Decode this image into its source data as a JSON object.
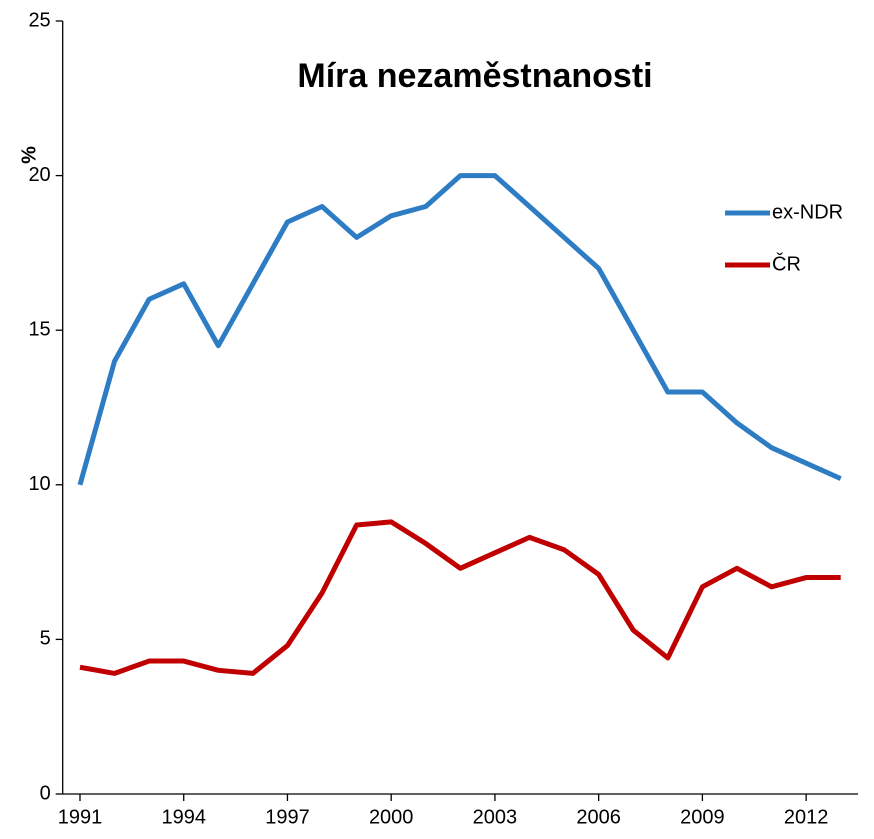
{
  "chart_data": {
    "type": "line",
    "title": "Míra nezaměstnanosti",
    "y_label": "%",
    "x": [
      1991,
      1992,
      1993,
      1994,
      1995,
      1996,
      1997,
      1998,
      1999,
      2000,
      2001,
      2002,
      2003,
      2004,
      2005,
      2006,
      2007,
      2008,
      2009,
      2010,
      2011,
      2012,
      2013
    ],
    "series": [
      {
        "name": "ex-NDR",
        "color": "#2e7dc4",
        "values": [
          10,
          14,
          16,
          16.5,
          14.5,
          16.5,
          18.5,
          19,
          18,
          18.7,
          19,
          20,
          20,
          19,
          18,
          17,
          15,
          13,
          13,
          12,
          11.2,
          10.7,
          10.2
        ]
      },
      {
        "name": "ČR",
        "color": "#c00000",
        "values": [
          4.1,
          3.9,
          4.3,
          4.3,
          4.0,
          3.9,
          4.8,
          6.5,
          8.7,
          8.8,
          8.1,
          7.3,
          7.8,
          8.3,
          7.9,
          7.1,
          5.3,
          4.4,
          6.7,
          7.3,
          6.7,
          7.0,
          7.0
        ]
      }
    ],
    "xlim": [
      1990.5,
      2013.5
    ],
    "xticks": [
      1991,
      1994,
      1997,
      2000,
      2003,
      2006,
      2009,
      2012
    ],
    "ylim": [
      0,
      25
    ],
    "yticks": [
      0,
      5,
      10,
      15,
      20,
      25
    ],
    "legend": "right"
  }
}
